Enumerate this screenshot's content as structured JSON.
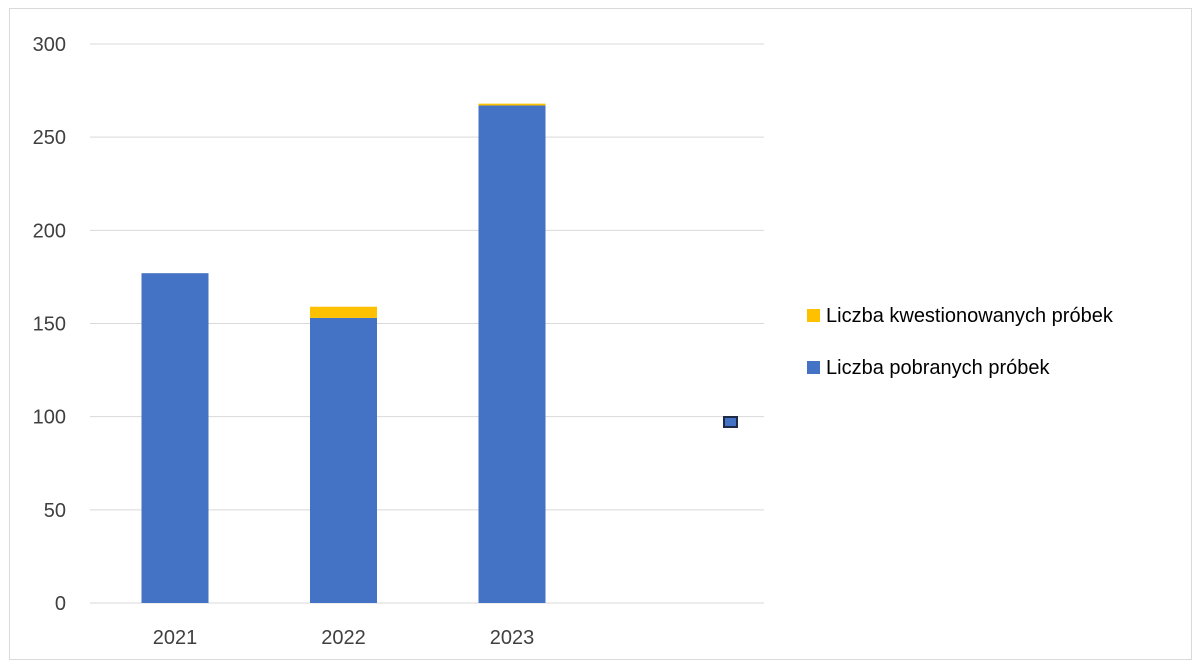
{
  "chart_data": {
    "type": "bar",
    "stacked": true,
    "categories": [
      "2021",
      "2022",
      "2023"
    ],
    "series": [
      {
        "name": "Liczba pobranych próbek",
        "values": [
          177,
          153,
          267
        ],
        "color": "#4472c4"
      },
      {
        "name": "Liczba kwestionowanych próbek",
        "values": [
          0,
          6,
          1
        ],
        "color": "#ffc000"
      }
    ],
    "y_ticks": [
      "0",
      "50",
      "100",
      "150",
      "200",
      "250",
      "300"
    ],
    "ylim": [
      0,
      300
    ],
    "grid": true,
    "legend_position": "right",
    "legend_order": [
      1,
      0
    ],
    "axis_text_color": "#404040",
    "gridline_color": "#d9d9d9"
  }
}
